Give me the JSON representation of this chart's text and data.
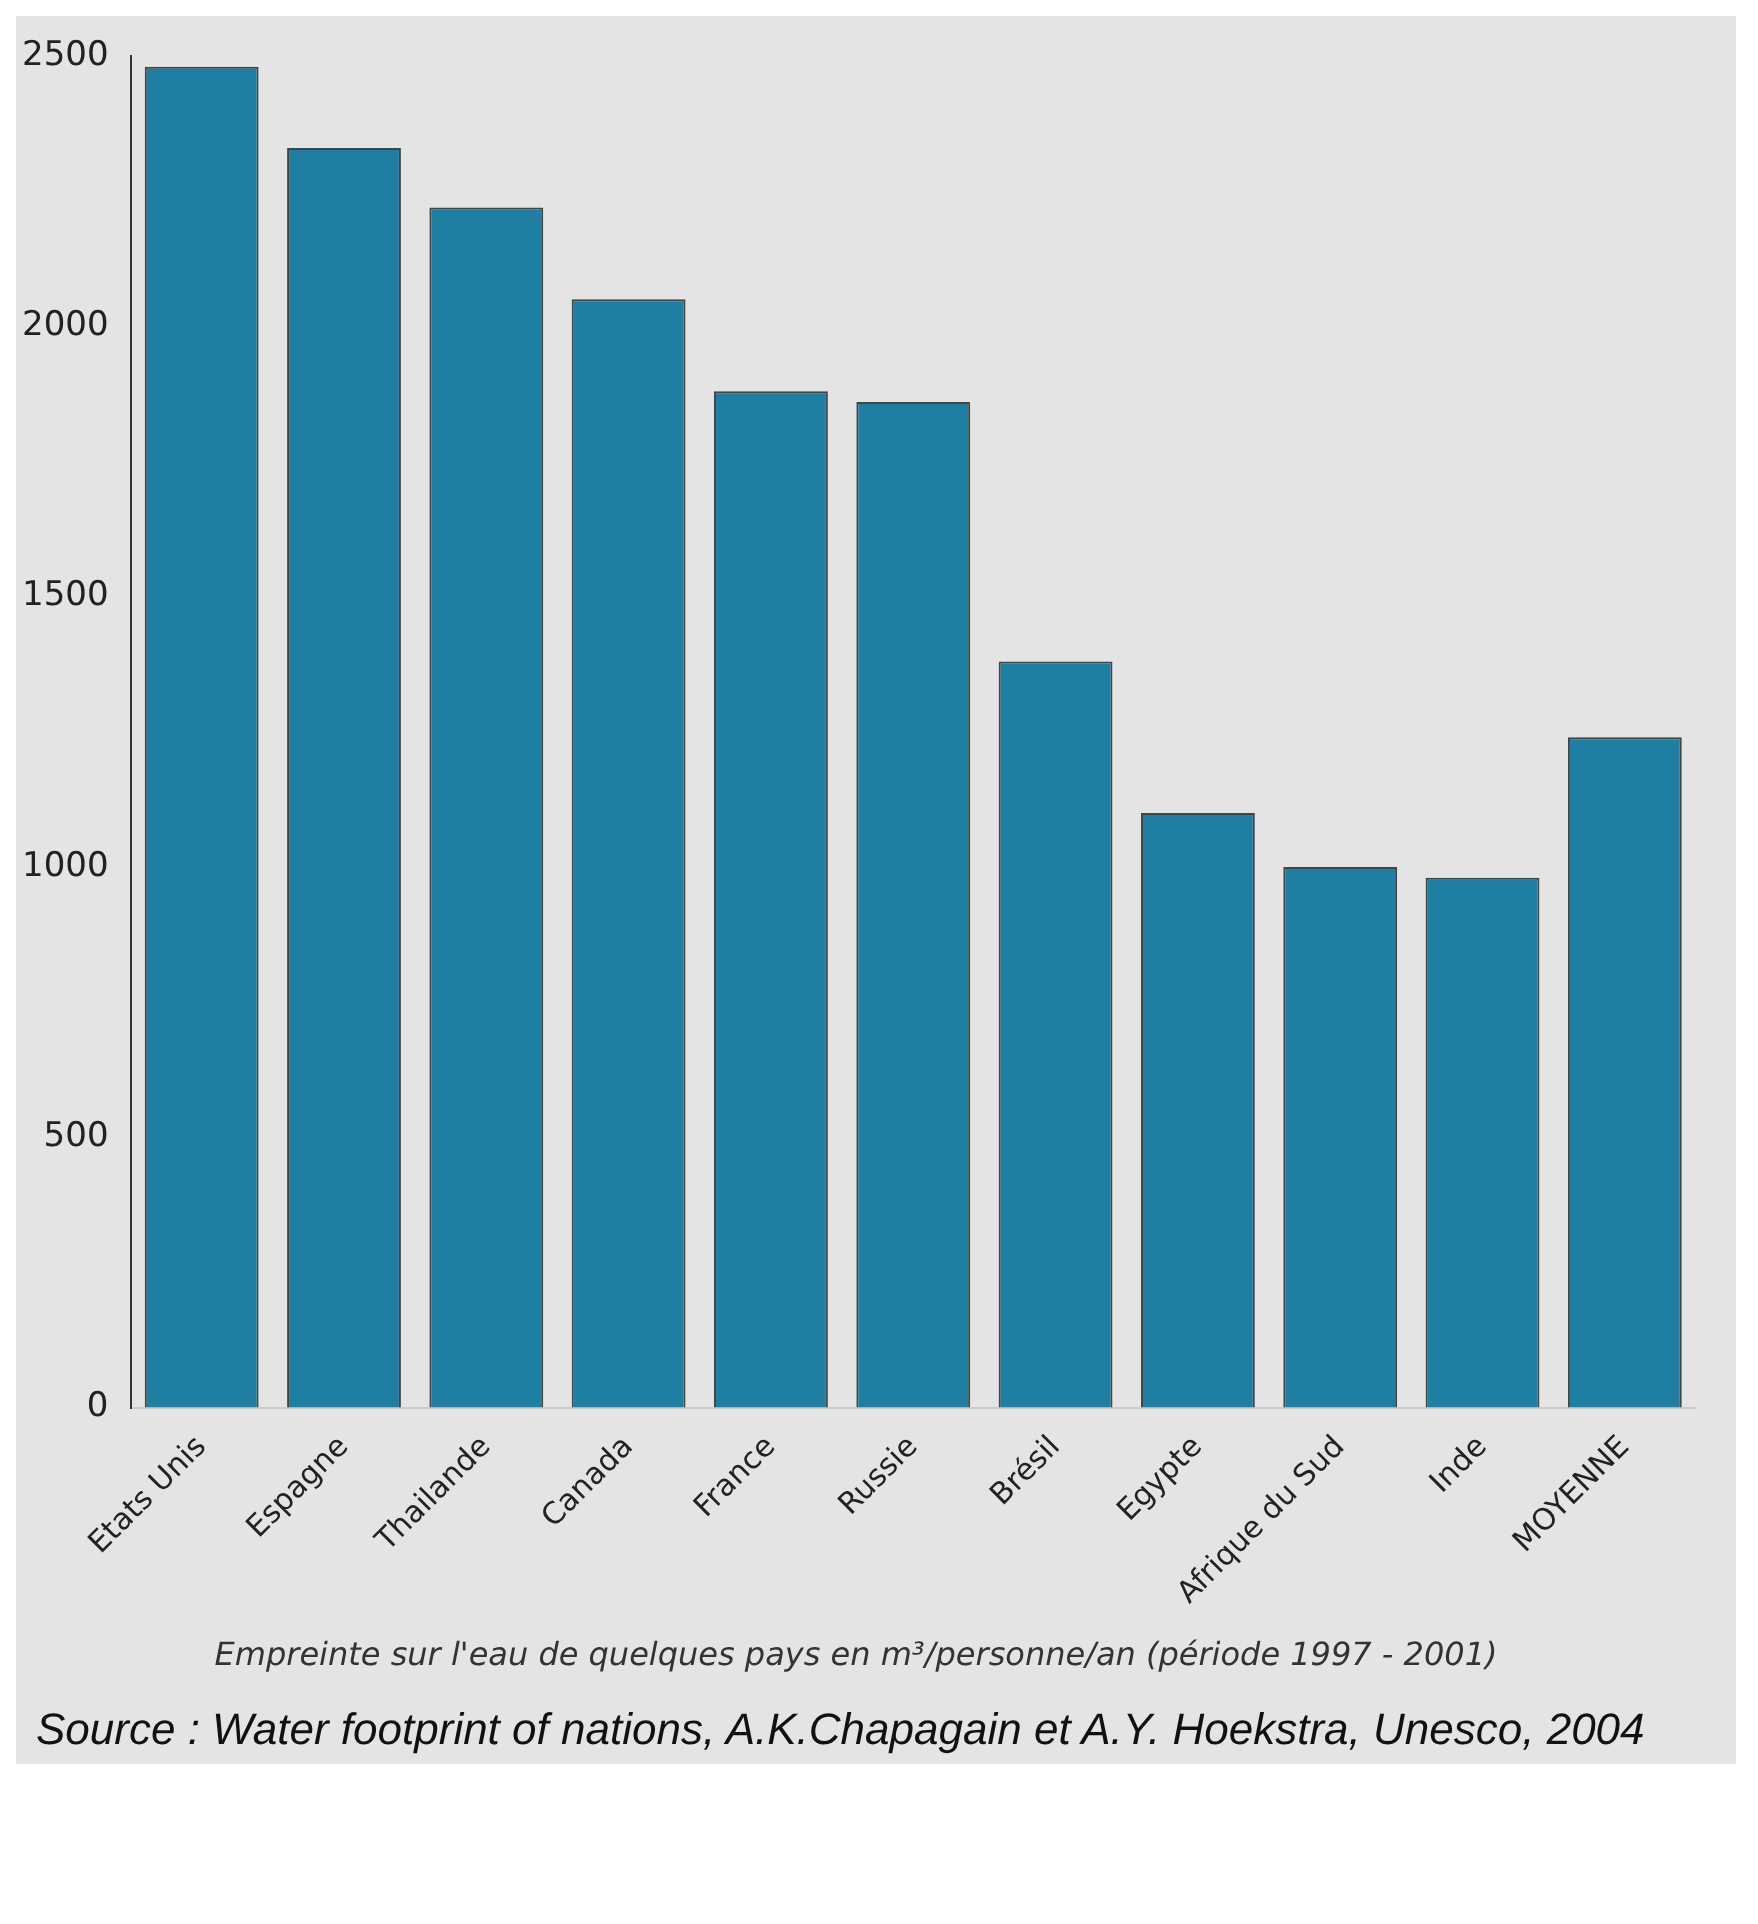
{
  "chart_data": {
    "type": "bar",
    "title": "Empreinte sur l'eau de quelques pays en m³/personne/an (période 1997 - 2001)",
    "categories": [
      "Etats Unis",
      "Espagne",
      "Thailande",
      "Canada",
      "France",
      "Russie",
      "Brésil",
      "Egypte",
      "Afrique du Sud",
      "Inde",
      "MOYENNE"
    ],
    "values": [
      2480,
      2330,
      2220,
      2050,
      1880,
      1860,
      1380,
      1100,
      1000,
      980,
      1240
    ],
    "color": "#1f7fa3",
    "ylim": [
      0,
      2500
    ],
    "yticks": [
      0,
      500,
      1000,
      1500,
      2000,
      2500
    ],
    "grid": false,
    "legend": false,
    "annotations": [
      "Source : Water footprint of nations, A.K.Chapagain et A.Y. Hoekstra, Unesco, 2004"
    ]
  }
}
